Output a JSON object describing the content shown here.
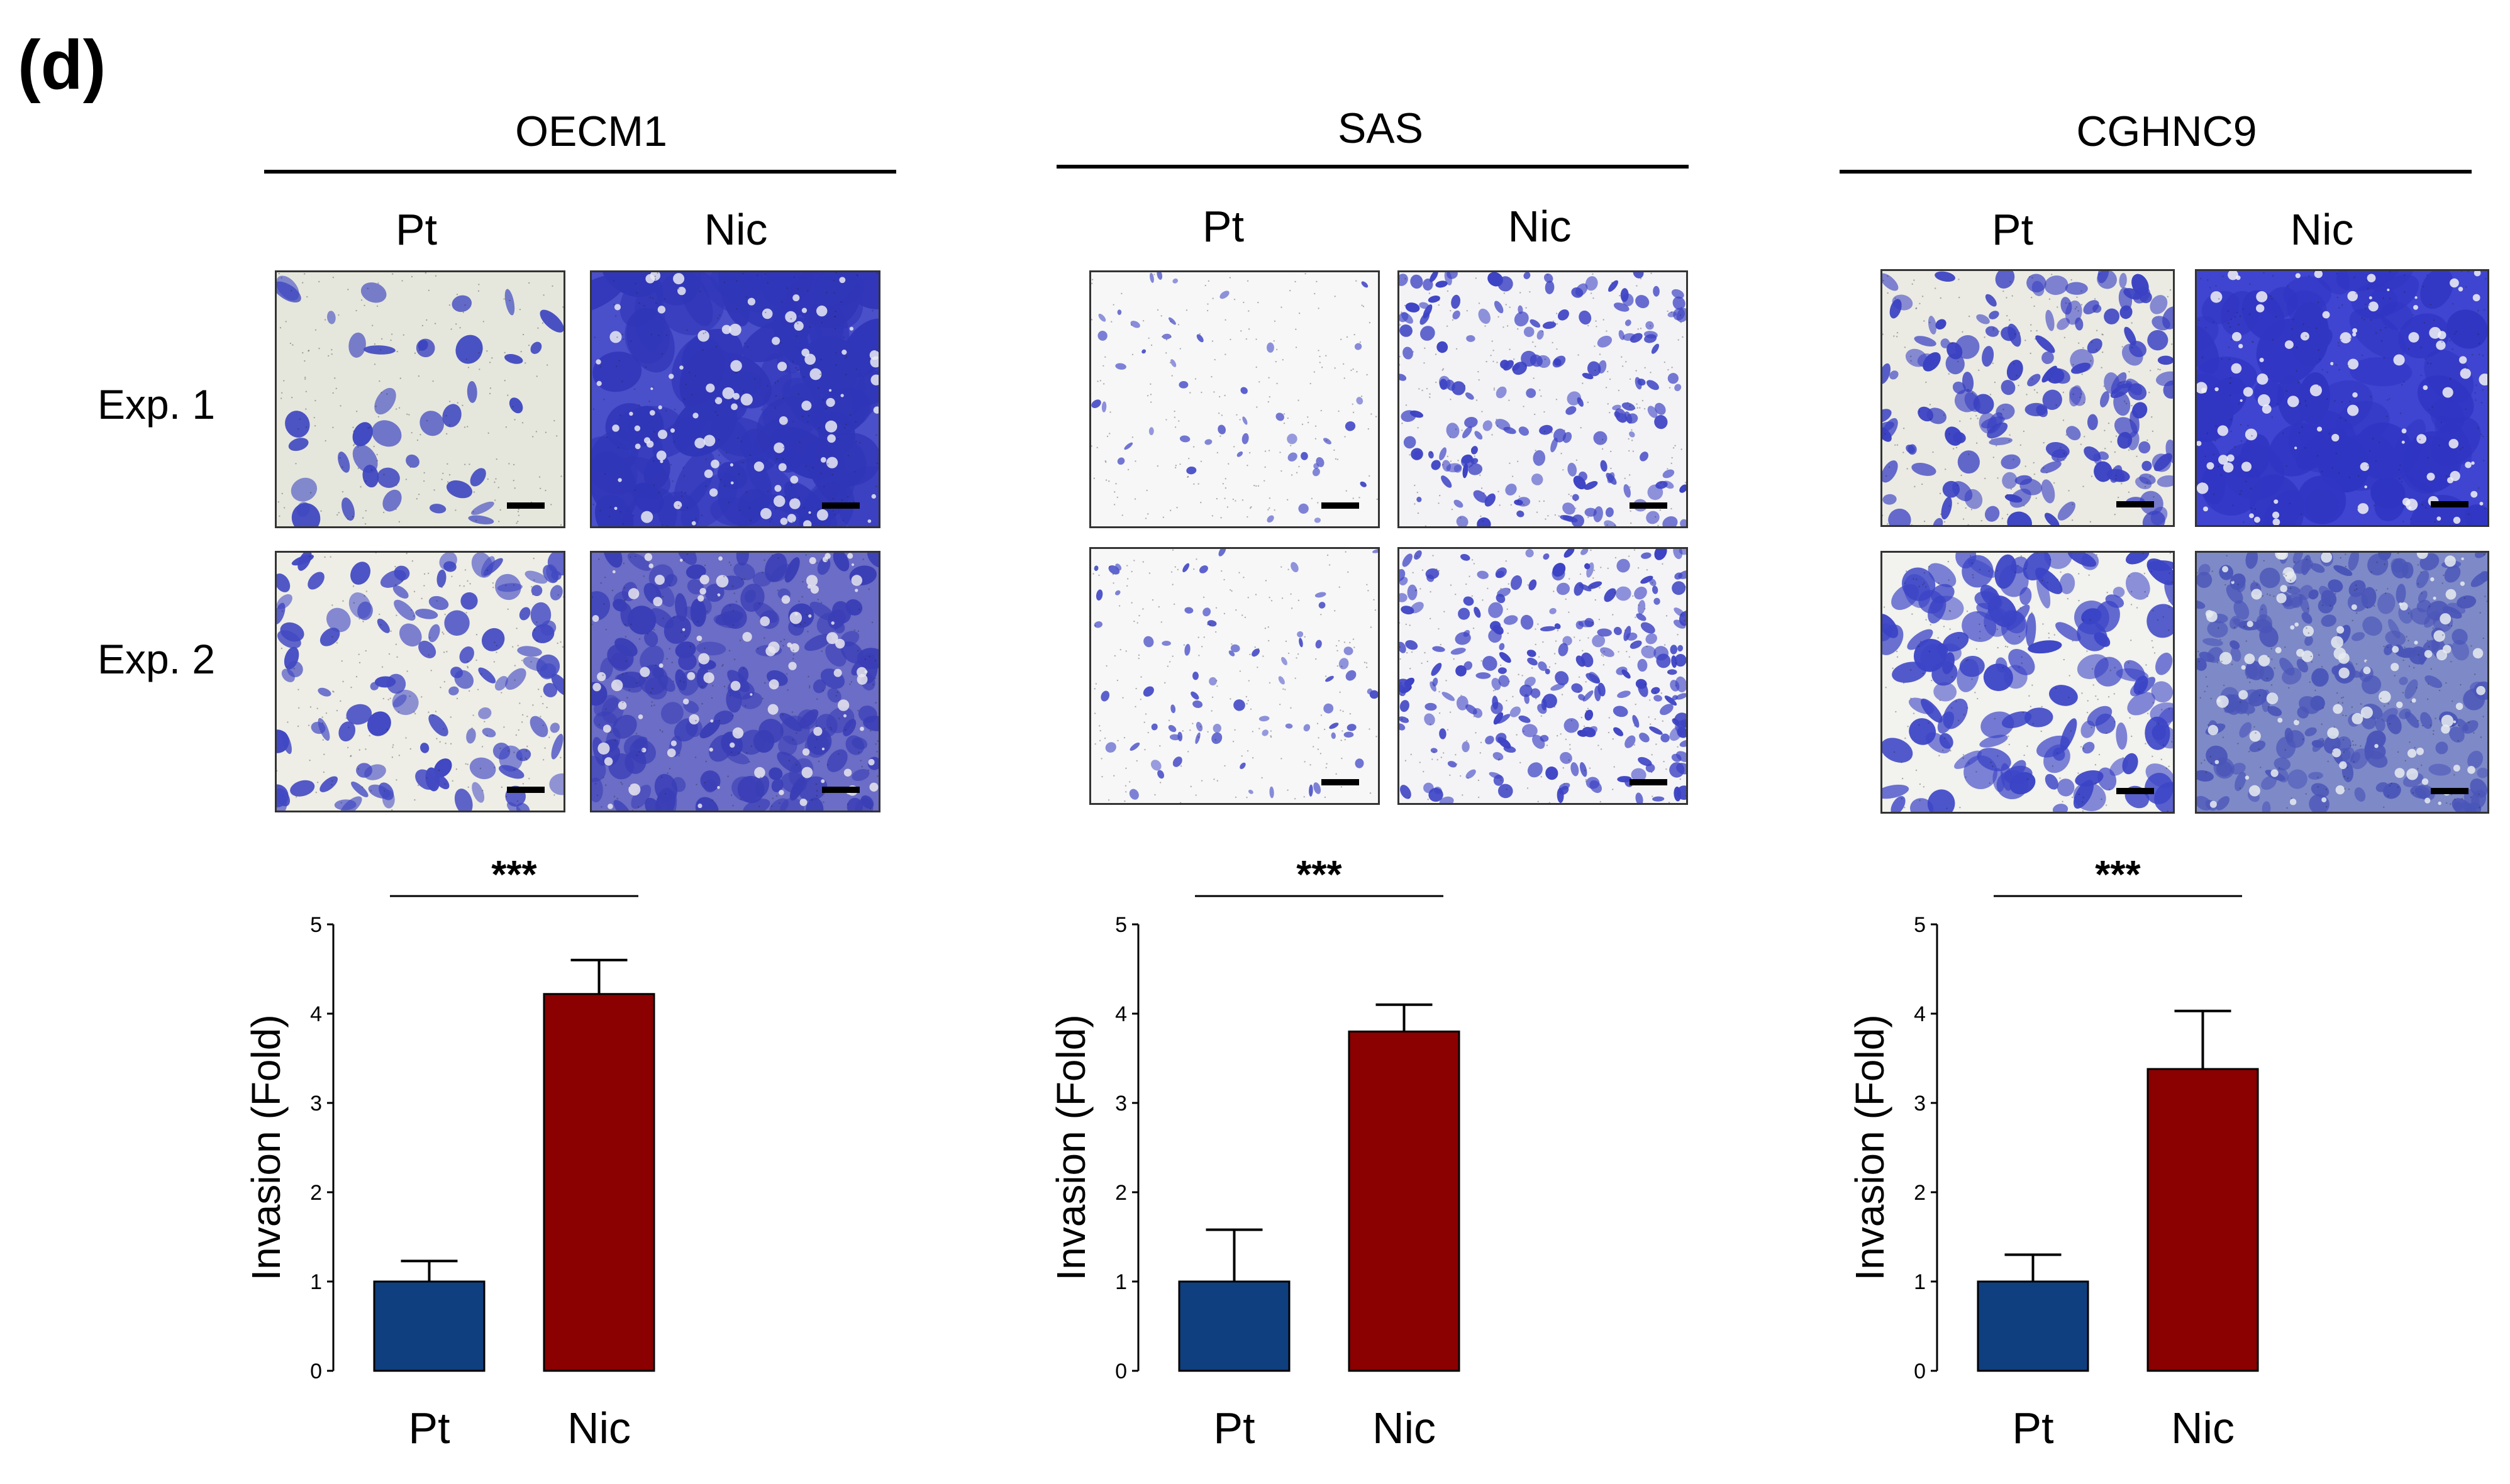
{
  "panel_label": "(d)",
  "row_labels": [
    "Exp. 1",
    "Exp. 2"
  ],
  "colors": {
    "pt": "#0f3f7f",
    "nic": "#8b0000",
    "stain": "#3a3fc7",
    "background_light": "#e8e8df",
    "background_white": "#f7f7f7"
  },
  "cell_lines": [
    {
      "name": "OECM1",
      "columns": [
        "Pt",
        "Nic"
      ],
      "significance": "***",
      "chart_data": {
        "type": "bar",
        "title": "OECM1",
        "categories": [
          "Pt",
          "Nic"
        ],
        "values": [
          1.0,
          4.22
        ],
        "errors": [
          0.23,
          0.38
        ],
        "ylabel": "Invasion (Fold)",
        "xlabel": "",
        "ylim": [
          0,
          5
        ],
        "yticks": [
          "0",
          "1",
          "2",
          "3",
          "4",
          "5"
        ],
        "significance": "***"
      }
    },
    {
      "name": "SAS",
      "columns": [
        "Pt",
        "Nic"
      ],
      "significance": "***",
      "chart_data": {
        "type": "bar",
        "title": "SAS",
        "categories": [
          "Pt",
          "Nic"
        ],
        "values": [
          1.0,
          3.8
        ],
        "errors": [
          0.58,
          0.3
        ],
        "ylabel": "Invasion (Fold)",
        "xlabel": "",
        "ylim": [
          0,
          5
        ],
        "yticks": [
          "0",
          "1",
          "2",
          "3",
          "4",
          "5"
        ],
        "significance": "***"
      }
    },
    {
      "name": "CGHNC9",
      "columns": [
        "Pt",
        "Nic"
      ],
      "significance": "***",
      "chart_data": {
        "type": "bar",
        "title": "CGHNC9",
        "categories": [
          "Pt",
          "Nic"
        ],
        "values": [
          1.0,
          3.38
        ],
        "errors": [
          0.3,
          0.65
        ],
        "ylabel": "Invasion (Fold)",
        "xlabel": "",
        "ylim": [
          0,
          5
        ],
        "yticks": [
          "0",
          "1",
          "2",
          "3",
          "4",
          "5"
        ],
        "significance": "***"
      }
    }
  ]
}
